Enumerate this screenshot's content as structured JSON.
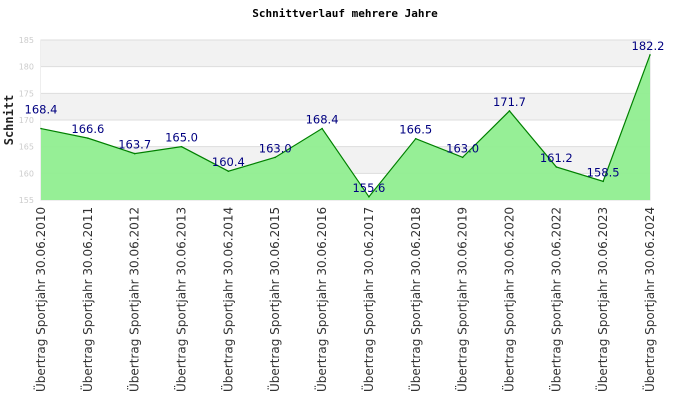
{
  "chart_data": {
    "type": "area",
    "title": "Schnittverlauf mehrere Jahre",
    "xlabel": "",
    "ylabel": "Schnitt",
    "ylim": [
      155,
      185
    ],
    "yticks": [
      155,
      160,
      165,
      170,
      175,
      180,
      185
    ],
    "categories": [
      "Übertrag Sportjahr 30.06.2010",
      "Übertrag Sportjahr 30.06.2011",
      "Übertrag Sportjahr 30.06.2012",
      "Übertrag Sportjahr 30.06.2013",
      "Übertrag Sportjahr 30.06.2014",
      "Übertrag Sportjahr 30.06.2015",
      "Übertrag Sportjahr 30.06.2016",
      "Übertrag Sportjahr 30.06.2017",
      "Übertrag Sportjahr 30.06.2018",
      "Übertrag Sportjahr 30.06.2019",
      "Übertrag Sportjahr 30.06.2020",
      "Übertrag Sportjahr 30.06.2022",
      "Übertrag Sportjahr 30.06.2023",
      "Übertrag Sportjahr 30.06.2024"
    ],
    "values": [
      168.4,
      166.6,
      163.7,
      165.0,
      160.4,
      163.0,
      168.4,
      155.6,
      166.5,
      163.0,
      171.7,
      161.2,
      158.5,
      182.2
    ],
    "value_labels": [
      "168.4",
      "166.6",
      "163.7",
      "165.0",
      "160.4",
      "163.0",
      "168.4",
      "155.6",
      "166.5",
      "163.0",
      "171.7",
      "161.2",
      "158.5",
      "182.2"
    ],
    "grid": true,
    "colors": {
      "fill": "#90ee90",
      "line": "#008000",
      "label": "#000080",
      "band": "#f2f2f2"
    }
  }
}
